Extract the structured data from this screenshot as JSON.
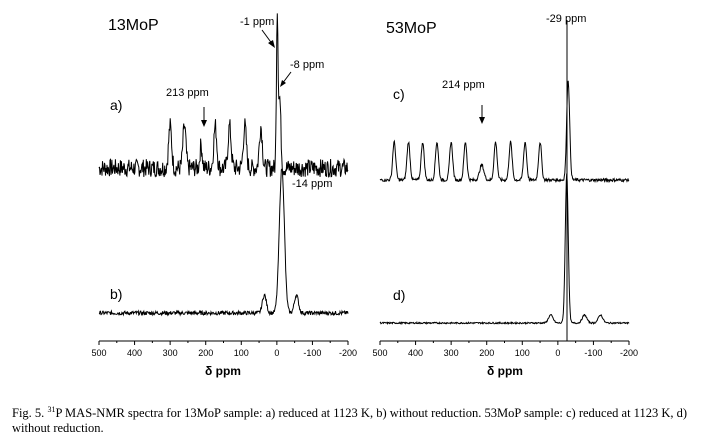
{
  "chart_data": {
    "type": "line",
    "panels": [
      {
        "sample": "13MoP",
        "xlabel": "δ ppm",
        "xlim": [
          500,
          -200
        ],
        "xticks": [
          "500",
          "400",
          "300",
          "200",
          "100",
          "0",
          "-100",
          "-200"
        ],
        "spectra": [
          {
            "label": "a)",
            "description": "reduced at 1123 K",
            "baseline_noise": "high",
            "peaks": [
              {
                "ppm": -1,
                "label": "-1 ppm",
                "relative_height": 1.0
              },
              {
                "ppm": -8,
                "label": "-8 ppm",
                "relative_height": 0.45
              },
              {
                "ppm": 213,
                "label": "213 ppm",
                "relative_height": 0.15
              }
            ],
            "sidebands_ppm": [
              300,
              260,
              173,
              133,
              90,
              45
            ]
          },
          {
            "label": "b)",
            "description": "without reduction",
            "baseline_noise": "low",
            "peaks": [
              {
                "ppm": -14,
                "label": "-14 ppm",
                "relative_height": 1.0
              }
            ],
            "sidebands_ppm": [
              35,
              -55
            ]
          }
        ]
      },
      {
        "sample": "53MoP",
        "xlabel": "δ ppm",
        "xlim": [
          500,
          -200
        ],
        "xticks": [
          "500",
          "400",
          "300",
          "200",
          "100",
          "0",
          "-100",
          "-200"
        ],
        "spectra": [
          {
            "label": "c)",
            "description": "reduced at 1123 K",
            "baseline_noise": "low",
            "peaks": [
              {
                "ppm": -29,
                "label": "-29 ppm",
                "relative_height": 1.0
              },
              {
                "ppm": 214,
                "label": "214 ppm",
                "relative_height": 0.15
              }
            ],
            "sidebands_ppm": [
              460,
              420,
              380,
              340,
              300,
              260,
              175,
              133,
              92,
              50
            ]
          },
          {
            "label": "d)",
            "description": "without reduction",
            "baseline_noise": "low",
            "peaks": [
              {
                "ppm": -25,
                "label": "",
                "relative_height": 1.0
              }
            ],
            "sidebands_ppm": [
              20,
              -75,
              -120
            ]
          }
        ]
      }
    ]
  },
  "annotations": {
    "sample_left": "13MoP",
    "sample_right": "53MoP",
    "label_a": "a)",
    "label_b": "b)",
    "label_c": "c)",
    "label_d": "d)",
    "ppm_m1": "-1 ppm",
    "ppm_m8": "-8 ppm",
    "ppm_213": "213 ppm",
    "ppm_m14": "-14 ppm",
    "ppm_m29": "-29 ppm",
    "ppm_214": "214 ppm"
  },
  "caption": {
    "prefix": "Fig. 5. ",
    "superscript": "31",
    "text": "P MAS-NMR spectra for 13MoP sample: a) reduced at 1123 K, b) without reduction. 53MoP sample: c) reduced at 1123 K, d) without reduction."
  }
}
